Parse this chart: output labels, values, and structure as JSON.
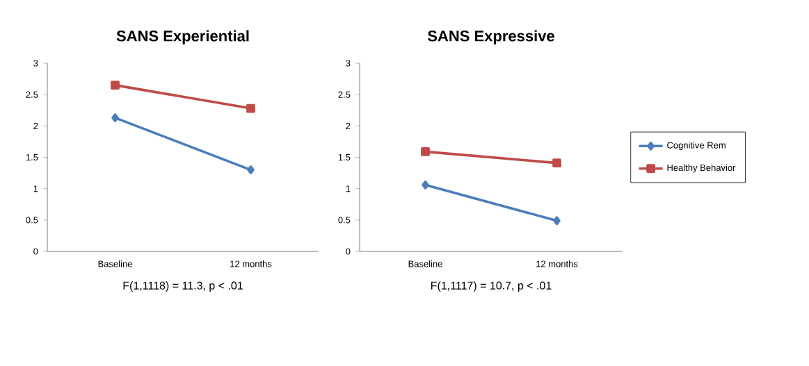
{
  "chart_data": [
    {
      "type": "line",
      "title": "SANS Experiential",
      "categories": [
        "Baseline",
        "12 months"
      ],
      "ylim": [
        0,
        3
      ],
      "yticks": [
        0,
        0.5,
        1,
        1.5,
        2,
        2.5,
        3
      ],
      "series": [
        {
          "color": "#4a7ebb",
          "marker": "diamond",
          "values": [
            2.13,
            1.3
          ]
        },
        {
          "color": "#be4b48",
          "marker": "square",
          "values": [
            2.65,
            2.28
          ]
        }
      ],
      "annotations": [
        "F(1,1118) = 11.3, p < .01"
      ]
    },
    {
      "type": "line",
      "title": "SANS Expressive",
      "categories": [
        "Baseline",
        "12 months"
      ],
      "ylim": [
        0,
        3
      ],
      "yticks": [
        0,
        0.5,
        1,
        1.5,
        2,
        2.5,
        3
      ],
      "legend": "right",
      "series": [
        {
          "name": "Cognitive Rem",
          "color": "#4a7ebb",
          "marker": "diamond",
          "values": [
            1.06,
            0.49
          ]
        },
        {
          "name": "Healthy Behavior",
          "color": "#be4b48",
          "marker": "square",
          "values": [
            1.59,
            1.41
          ]
        }
      ],
      "annotations": [
        "F(1,1117) = 10.7, p < .01"
      ]
    }
  ]
}
